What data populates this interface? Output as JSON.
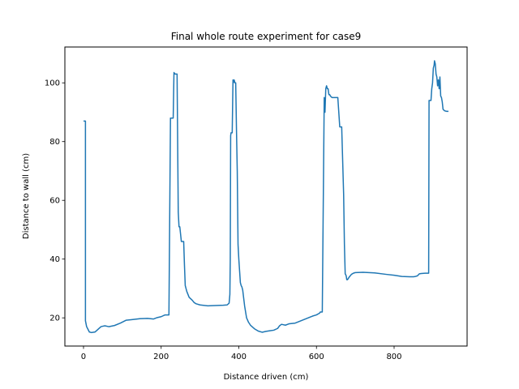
{
  "chart_data": {
    "type": "line",
    "title": "Final whole route experiment for case9",
    "xlabel": "Distance driven (cm)",
    "ylabel": "Distance to wall (cm)",
    "xlim": [
      -48,
      988
    ],
    "ylim": [
      10.4,
      112.2
    ],
    "xticks": [
      0,
      200,
      400,
      600,
      800
    ],
    "yticks": [
      20,
      40,
      60,
      80,
      100
    ],
    "grid": false,
    "legend": "none",
    "series": [
      {
        "color": "#1f77b4",
        "x": [
          0,
          5,
          5,
          8,
          10,
          15,
          20,
          30,
          45,
          55,
          65,
          80,
          95,
          110,
          125,
          145,
          165,
          180,
          190,
          200,
          210,
          220,
          224,
          226,
          231,
          233,
          236,
          241,
          244,
          246,
          248,
          252,
          258,
          260,
          262,
          266,
          272,
          280,
          285,
          290,
          300,
          320,
          340,
          360,
          370,
          375,
          377,
          378,
          379,
          380,
          381,
          383,
          385,
          386,
          388,
          390,
          392,
          394,
          396,
          398,
          400,
          402,
          404,
          406,
          408,
          410,
          415,
          420,
          425,
          430,
          440,
          450,
          460,
          470,
          480,
          490,
          500,
          505,
          510,
          520,
          530,
          545,
          560,
          575,
          590,
          600,
          608,
          610,
          615,
          620,
          622,
          624,
          626,
          628,
          630,
          632,
          634,
          636,
          640,
          645,
          650,
          655,
          660,
          665,
          670,
          672,
          674,
          676,
          677,
          678,
          680,
          685,
          690,
          695,
          700,
          720,
          750,
          780,
          800,
          820,
          840,
          850,
          855,
          860,
          865,
          870,
          880,
          888,
          889,
          890,
          893,
          895,
          897,
          899,
          901,
          903,
          904,
          906,
          908,
          910,
          912,
          914,
          916,
          918,
          920,
          922,
          924,
          926,
          930,
          935,
          940
        ],
        "y": [
          87,
          87,
          19,
          17,
          16.5,
          15.2,
          15,
          15.2,
          17,
          17.3,
          17,
          17.4,
          18.2,
          19.2,
          19.4,
          19.7,
          19.8,
          19.6,
          20.1,
          20.4,
          21,
          21,
          88,
          88,
          88,
          103.5,
          103,
          103,
          56,
          51,
          51,
          46,
          46,
          38,
          31,
          29,
          27,
          26,
          25.2,
          24.8,
          24.4,
          24.1,
          24.2,
          24.3,
          24.4,
          25,
          28,
          40,
          82,
          83,
          83,
          83,
          101,
          100,
          101,
          100,
          100,
          84,
          70,
          45,
          40,
          36,
          32,
          31,
          30.5,
          29.5,
          24,
          20,
          18.5,
          17.5,
          16.3,
          15.5,
          15.1,
          15.4,
          15.6,
          15.8,
          16.4,
          17.3,
          17.8,
          17.5,
          18,
          18.2,
          19,
          19.8,
          20.6,
          21,
          21.6,
          22,
          22,
          95,
          90,
          98,
          99,
          98,
          98,
          96,
          96,
          95.5,
          95,
          95,
          95,
          95,
          85,
          85,
          62,
          45,
          35,
          34.5,
          34,
          33,
          33,
          34,
          34.8,
          35.2,
          35.4,
          35.5,
          35.3,
          34.8,
          34.5,
          34.1,
          34,
          34,
          34.1,
          34.3,
          35,
          35.1,
          35.2,
          35.2,
          35.2,
          94,
          94,
          94,
          98,
          100,
          105,
          106,
          107.5,
          106.5,
          103,
          102,
          99,
          101,
          98,
          102,
          95.5,
          95,
          93.5,
          91,
          90.5,
          90.3,
          90.3
        ]
      }
    ]
  }
}
